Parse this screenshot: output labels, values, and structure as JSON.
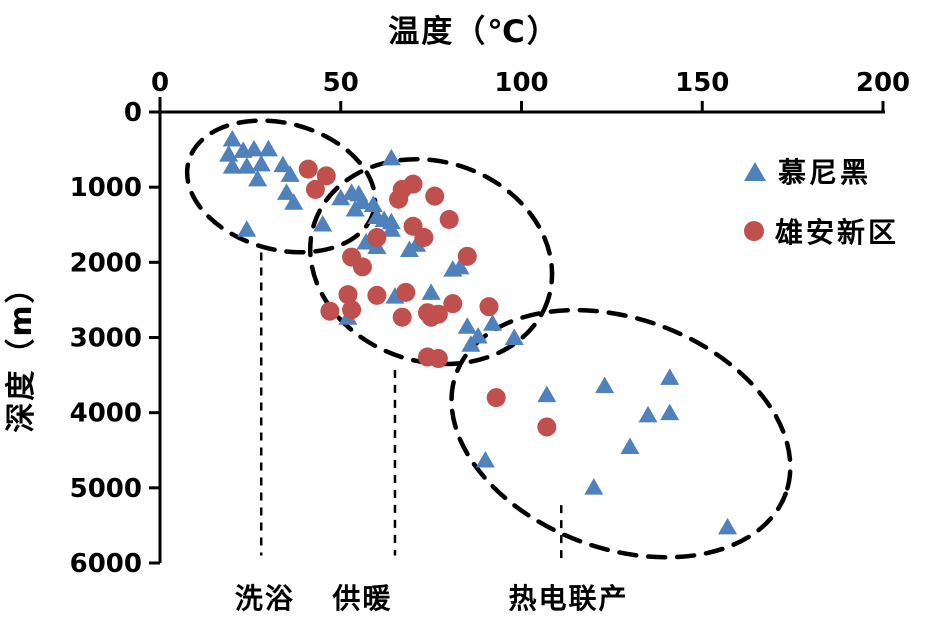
{
  "chart_data": {
    "type": "scatter",
    "x_axis": {
      "title": "温度（℃）",
      "position": "top",
      "ticks": [
        0,
        50,
        100,
        150,
        200
      ]
    },
    "y_axis": {
      "title": "深度（m）",
      "inverted": true,
      "ticks": [
        0,
        1000,
        2000,
        3000,
        4000,
        5000,
        6000
      ]
    },
    "xlim": [
      0,
      200
    ],
    "ylim": [
      0,
      6000
    ],
    "grid": false,
    "legend_position": "inside-top-right",
    "series": [
      {
        "id": "munich",
        "name": "慕尼黑",
        "marker": "triangle",
        "color": "#4F81BD",
        "points": [
          [
            20,
            360
          ],
          [
            19,
            560
          ],
          [
            23,
            510
          ],
          [
            26,
            490
          ],
          [
            30,
            490
          ],
          [
            20,
            720
          ],
          [
            24,
            720
          ],
          [
            28,
            690
          ],
          [
            27,
            890
          ],
          [
            34,
            700
          ],
          [
            36,
            830
          ],
          [
            35,
            1070
          ],
          [
            37,
            1200
          ],
          [
            24,
            1560
          ],
          [
            45,
            1490
          ],
          [
            64,
            610
          ],
          [
            50,
            1140
          ],
          [
            53,
            1070
          ],
          [
            55,
            1090
          ],
          [
            56,
            1190
          ],
          [
            54,
            1290
          ],
          [
            59,
            1230
          ],
          [
            60,
            1390
          ],
          [
            62,
            1430
          ],
          [
            64,
            1460
          ],
          [
            57,
            1730
          ],
          [
            60,
            1790
          ],
          [
            71,
            1760
          ],
          [
            64,
            1560
          ],
          [
            69,
            1830
          ],
          [
            81,
            2090
          ],
          [
            83,
            2060
          ],
          [
            65,
            2450
          ],
          [
            75,
            2400
          ],
          [
            52,
            2730
          ],
          [
            85,
            2850
          ],
          [
            88,
            2980
          ],
          [
            92,
            2810
          ],
          [
            86,
            3090
          ],
          [
            98,
            3000
          ],
          [
            107,
            3760
          ],
          [
            123,
            3640
          ],
          [
            141,
            3530
          ],
          [
            135,
            4030
          ],
          [
            141,
            4000
          ],
          [
            130,
            4450
          ],
          [
            120,
            4990
          ],
          [
            90,
            4630
          ],
          [
            157,
            5520
          ]
        ]
      },
      {
        "id": "xiongan",
        "name": "雄安新区",
        "marker": "circle",
        "color": "#C0504D",
        "points": [
          [
            41,
            760
          ],
          [
            46,
            850
          ],
          [
            43,
            1030
          ],
          [
            66,
            1160
          ],
          [
            67,
            1030
          ],
          [
            70,
            960
          ],
          [
            76,
            1120
          ],
          [
            80,
            1430
          ],
          [
            70,
            1520
          ],
          [
            73,
            1670
          ],
          [
            60,
            1670
          ],
          [
            85,
            1920
          ],
          [
            53,
            1930
          ],
          [
            56,
            2060
          ],
          [
            52,
            2430
          ],
          [
            60,
            2440
          ],
          [
            68,
            2400
          ],
          [
            47,
            2650
          ],
          [
            53,
            2630
          ],
          [
            67,
            2730
          ],
          [
            74,
            2670
          ],
          [
            75,
            2730
          ],
          [
            81,
            2550
          ],
          [
            91,
            2590
          ],
          [
            77,
            2690
          ],
          [
            74,
            3260
          ],
          [
            77,
            3280
          ],
          [
            93,
            3800
          ],
          [
            107,
            4190
          ]
        ]
      }
    ],
    "clusters": [
      {
        "label": "洗浴",
        "center_temp": 33.5,
        "center_depth": 990,
        "rx_temp": 26.5,
        "ry_depth": 840,
        "rotation_deg": 15,
        "leader_temp": 28,
        "leader_depth_from": 1870,
        "leader_depth_to": 5900,
        "label_temp": 29
      },
      {
        "label": "供暖",
        "center_temp": 75,
        "center_depth": 1990,
        "rx_temp": 34,
        "ry_depth": 1330,
        "rotation_deg": 18,
        "leader_temp": 65,
        "leader_depth_from": 3430,
        "leader_depth_to": 5900,
        "label_temp": 56
      },
      {
        "label": "热电联产",
        "center_temp": 127.5,
        "center_depth": 4280,
        "rx_temp": 48.5,
        "ry_depth": 1530,
        "rotation_deg": 20,
        "leader_temp": 111,
        "leader_depth_from": 5230,
        "leader_depth_to": 5980,
        "label_temp": 113
      }
    ]
  }
}
